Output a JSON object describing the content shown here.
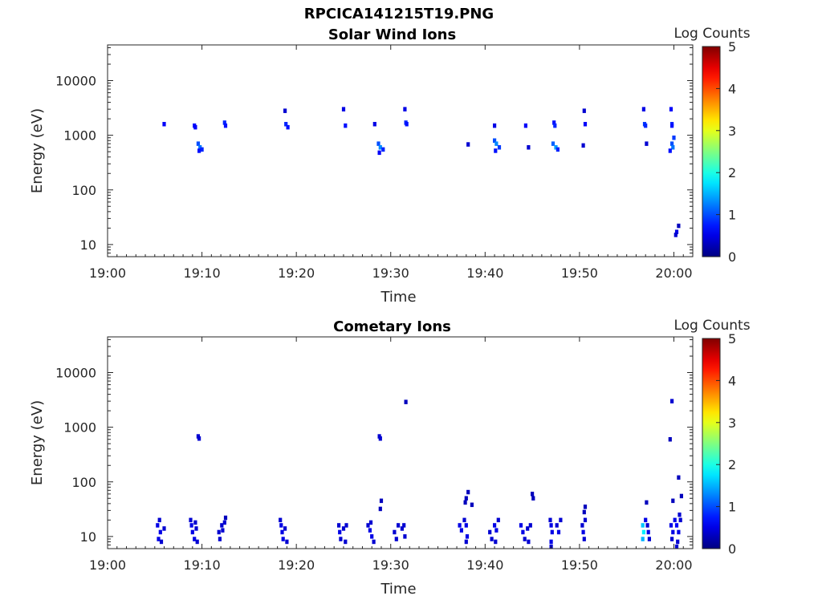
{
  "figure": {
    "title": "RPCICA141215T19.PNG"
  },
  "chart_data": [
    {
      "type": "heatmap",
      "title": "Solar Wind Ions",
      "xlabel": "Time",
      "ylabel": "Energy (eV)",
      "x_ticks": [
        "19:00",
        "19:10",
        "19:20",
        "19:30",
        "19:40",
        "19:50",
        "20:00"
      ],
      "x_range_minutes": [
        0,
        62
      ],
      "y_scale": "log",
      "y_ticks": [
        10,
        100,
        1000,
        10000
      ],
      "y_range": [
        6,
        45000
      ],
      "colorbar": {
        "title": "Log Counts",
        "range": [
          0,
          5
        ],
        "ticks": [
          0,
          1,
          2,
          3,
          4,
          5
        ],
        "colormap": "jet"
      },
      "cells": [
        [
          6.0,
          1600,
          0.6
        ],
        [
          9.2,
          1500,
          0.7
        ],
        [
          9.3,
          1400,
          0.6
        ],
        [
          9.6,
          700,
          1.0
        ],
        [
          9.8,
          600,
          1.2
        ],
        [
          10.0,
          550,
          0.8
        ],
        [
          9.7,
          520,
          0.7
        ],
        [
          12.4,
          1700,
          0.8
        ],
        [
          12.5,
          1500,
          0.7
        ],
        [
          18.8,
          2800,
          0.4
        ],
        [
          18.9,
          1600,
          0.8
        ],
        [
          19.1,
          1400,
          0.7
        ],
        [
          25.0,
          3000,
          0.5
        ],
        [
          25.2,
          1500,
          0.7
        ],
        [
          28.3,
          1600,
          0.5
        ],
        [
          28.7,
          700,
          1.0
        ],
        [
          28.9,
          600,
          1.3
        ],
        [
          29.2,
          550,
          0.8
        ],
        [
          28.8,
          480,
          0.6
        ],
        [
          31.5,
          3000,
          0.5
        ],
        [
          31.6,
          1700,
          0.8
        ],
        [
          31.7,
          1600,
          0.7
        ],
        [
          38.2,
          680,
          0.4
        ],
        [
          41.0,
          1500,
          0.5
        ],
        [
          41.0,
          800,
          1.0
        ],
        [
          41.2,
          700,
          1.3
        ],
        [
          41.5,
          600,
          0.9
        ],
        [
          41.1,
          520,
          0.7
        ],
        [
          44.3,
          1500,
          0.6
        ],
        [
          44.6,
          600,
          0.4
        ],
        [
          47.3,
          1700,
          0.7
        ],
        [
          47.4,
          1500,
          0.8
        ],
        [
          47.2,
          700,
          1.1
        ],
        [
          47.5,
          600,
          1.4
        ],
        [
          47.7,
          550,
          0.8
        ],
        [
          50.5,
          2800,
          0.4
        ],
        [
          50.6,
          1600,
          0.6
        ],
        [
          50.4,
          650,
          0.4
        ],
        [
          56.8,
          3000,
          0.5
        ],
        [
          56.9,
          1600,
          0.9
        ],
        [
          57.0,
          1500,
          0.8
        ],
        [
          57.1,
          700,
          0.4
        ],
        [
          59.7,
          3000,
          0.6
        ],
        [
          59.8,
          1600,
          0.8
        ],
        [
          59.8,
          1500,
          0.7
        ],
        [
          59.8,
          700,
          1.0
        ],
        [
          59.9,
          600,
          1.2
        ],
        [
          59.6,
          520,
          0.7
        ],
        [
          60.0,
          900,
          0.9
        ],
        [
          60.3,
          17,
          0.5
        ],
        [
          60.2,
          15,
          0.4
        ],
        [
          60.5,
          22,
          0.3
        ]
      ]
    },
    {
      "type": "heatmap",
      "title": "Cometary Ions",
      "xlabel": "Time",
      "ylabel": "Energy (eV)",
      "x_ticks": [
        "19:00",
        "19:10",
        "19:20",
        "19:30",
        "19:40",
        "19:50",
        "20:00"
      ],
      "x_range_minutes": [
        0,
        62
      ],
      "y_scale": "log",
      "y_ticks": [
        10,
        100,
        1000,
        10000
      ],
      "y_range": [
        6,
        45000
      ],
      "colorbar": {
        "title": "Log Counts",
        "range": [
          0,
          5
        ],
        "ticks": [
          0,
          1,
          2,
          3,
          4,
          5
        ],
        "colormap": "jet"
      },
      "cells": [
        [
          9.6,
          680,
          0.4
        ],
        [
          9.7,
          620,
          0.4
        ],
        [
          28.8,
          680,
          0.4
        ],
        [
          28.9,
          620,
          0.4
        ],
        [
          31.6,
          2900,
          0.3
        ],
        [
          59.8,
          3000,
          0.4
        ],
        [
          59.6,
          600,
          0.3
        ],
        [
          60.5,
          120,
          0.3
        ],
        [
          59.9,
          45,
          0.3
        ],
        [
          60.8,
          55,
          0.3
        ],
        [
          45.0,
          60,
          0.3
        ],
        [
          45.1,
          50,
          0.3
        ],
        [
          38.2,
          65,
          0.3
        ],
        [
          38.0,
          50,
          0.3
        ],
        [
          37.9,
          42,
          0.3
        ],
        [
          38.6,
          38,
          0.3
        ],
        [
          29.0,
          45,
          0.3
        ],
        [
          28.9,
          32,
          0.3
        ],
        [
          50.6,
          35,
          0.3
        ],
        [
          50.5,
          28,
          0.3
        ],
        [
          57.1,
          42,
          0.3
        ],
        [
          5.3,
          16,
          0.5
        ],
        [
          5.5,
          20,
          0.4
        ],
        [
          5.6,
          12,
          0.5
        ],
        [
          5.4,
          9,
          0.5
        ],
        [
          5.7,
          8,
          0.4
        ],
        [
          6.0,
          14,
          0.4
        ],
        [
          8.8,
          20,
          0.4
        ],
        [
          8.9,
          16,
          0.5
        ],
        [
          9.0,
          12,
          0.5
        ],
        [
          9.2,
          9,
          0.5
        ],
        [
          9.4,
          14,
          0.4
        ],
        [
          9.5,
          8,
          0.4
        ],
        [
          9.3,
          18,
          0.4
        ],
        [
          11.8,
          12,
          0.4
        ],
        [
          11.9,
          9,
          0.4
        ],
        [
          12.1,
          16,
          0.4
        ],
        [
          12.2,
          13,
          0.4
        ],
        [
          12.4,
          18,
          0.4
        ],
        [
          12.5,
          22,
          0.3
        ],
        [
          18.3,
          20,
          0.4
        ],
        [
          18.4,
          16,
          0.5
        ],
        [
          18.5,
          12,
          0.5
        ],
        [
          18.6,
          9,
          0.5
        ],
        [
          18.8,
          14,
          0.4
        ],
        [
          19.0,
          8,
          0.4
        ],
        [
          24.5,
          16,
          0.4
        ],
        [
          24.6,
          12,
          0.5
        ],
        [
          24.7,
          9,
          0.4
        ],
        [
          25.0,
          14,
          0.4
        ],
        [
          25.3,
          16,
          0.4
        ],
        [
          25.2,
          8,
          0.4
        ],
        [
          27.6,
          16,
          0.4
        ],
        [
          27.8,
          13,
          0.5
        ],
        [
          28.0,
          10,
          0.5
        ],
        [
          28.2,
          8,
          0.4
        ],
        [
          27.9,
          18,
          0.4
        ],
        [
          30.4,
          12,
          0.4
        ],
        [
          30.6,
          9,
          0.4
        ],
        [
          30.8,
          16,
          0.4
        ],
        [
          31.2,
          14,
          0.4
        ],
        [
          31.5,
          10,
          0.4
        ],
        [
          31.4,
          16,
          0.4
        ],
        [
          37.3,
          16,
          0.5
        ],
        [
          37.5,
          13,
          0.5
        ],
        [
          37.8,
          20,
          0.4
        ],
        [
          38.0,
          16,
          0.5
        ],
        [
          38.1,
          10,
          0.5
        ],
        [
          38.0,
          8,
          0.4
        ],
        [
          40.5,
          12,
          0.4
        ],
        [
          40.7,
          9,
          0.4
        ],
        [
          41.0,
          16,
          0.5
        ],
        [
          41.2,
          13,
          0.5
        ],
        [
          41.4,
          20,
          0.4
        ],
        [
          41.1,
          8,
          0.4
        ],
        [
          43.8,
          16,
          0.5
        ],
        [
          44.0,
          12,
          0.5
        ],
        [
          44.2,
          9,
          0.4
        ],
        [
          44.5,
          14,
          0.4
        ],
        [
          44.8,
          16,
          0.4
        ],
        [
          44.6,
          8,
          0.4
        ],
        [
          46.9,
          20,
          0.4
        ],
        [
          47.0,
          16,
          0.5
        ],
        [
          47.1,
          12,
          0.5
        ],
        [
          47.0,
          8,
          0.5
        ],
        [
          47.0,
          6.5,
          0.4
        ],
        [
          47.6,
          16,
          0.4
        ],
        [
          47.8,
          12,
          0.5
        ],
        [
          48.0,
          20,
          0.4
        ],
        [
          50.3,
          16,
          0.4
        ],
        [
          50.4,
          12,
          0.5
        ],
        [
          50.5,
          9,
          0.4
        ],
        [
          50.6,
          20,
          0.4
        ],
        [
          56.7,
          16,
          1.6
        ],
        [
          56.8,
          12,
          1.8
        ],
        [
          56.7,
          9,
          1.5
        ],
        [
          57.0,
          20,
          0.5
        ],
        [
          57.2,
          16,
          0.4
        ],
        [
          57.3,
          12,
          0.5
        ],
        [
          57.4,
          9,
          0.4
        ],
        [
          59.7,
          16,
          0.5
        ],
        [
          59.9,
          12,
          0.5
        ],
        [
          59.8,
          9,
          0.4
        ],
        [
          60.1,
          20,
          0.5
        ],
        [
          60.3,
          16,
          0.6
        ],
        [
          60.5,
          12,
          0.5
        ],
        [
          60.4,
          8,
          0.4
        ],
        [
          60.3,
          6.5,
          0.4
        ],
        [
          60.7,
          20,
          0.4
        ],
        [
          60.6,
          25,
          0.4
        ]
      ]
    }
  ]
}
